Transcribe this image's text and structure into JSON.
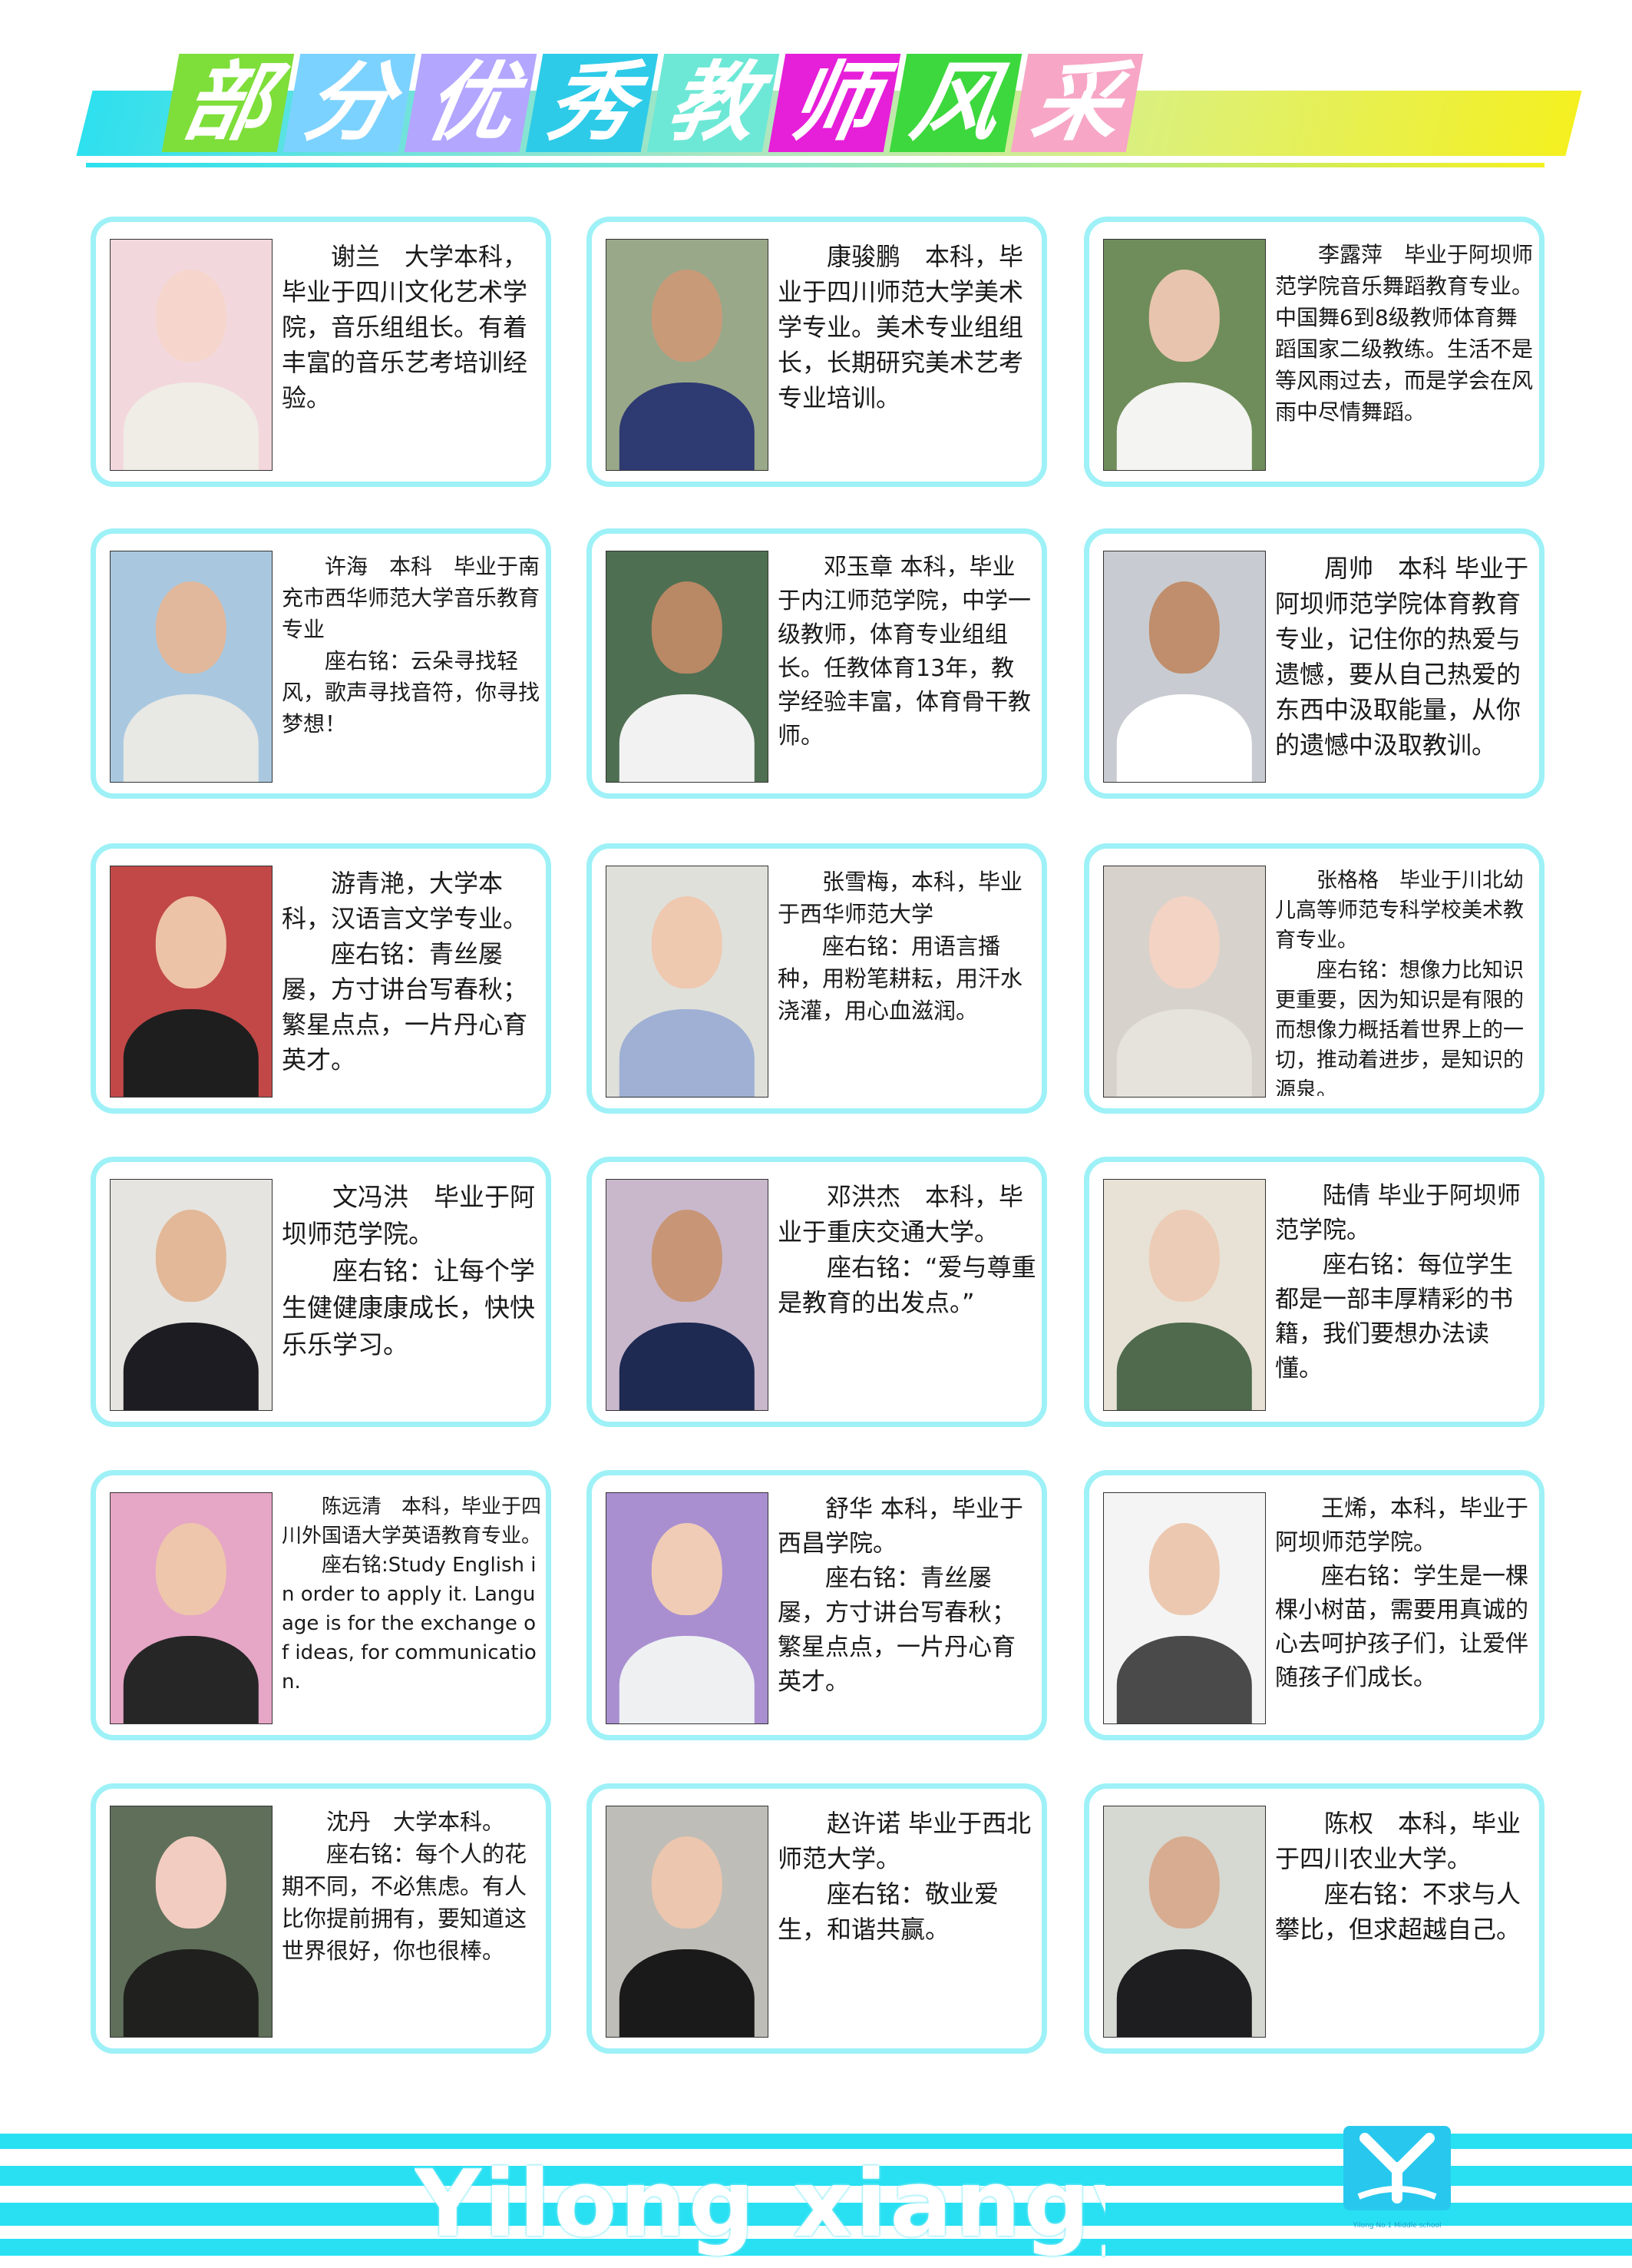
{
  "page": {
    "title_chars": [
      "部",
      "分",
      "优",
      "秀",
      "教",
      "师",
      "风",
      "采"
    ],
    "title_colors": [
      "#7ede3a",
      "#7cd2ff",
      "#b3a6ff",
      "#2ecbe8",
      "#6ee8d6",
      "#e61fd9",
      "#3dd83d",
      "#f7a6c6"
    ],
    "footer_text": "Yilong xiangyu",
    "logo_caption": "Yilong No.1 Middle school",
    "colors": {
      "accent": "#9ef1f7",
      "footer": "#28e0f2"
    }
  },
  "teachers": [
    {
      "text": "　　谢兰　大学本科，毕业于四川文化艺术学院，音乐组组长。有着丰富的音乐艺考培训经验。",
      "photo": {
        "bg": "#f2d8dc",
        "skin": "#f6d6cc",
        "cloth": "#f0ece6"
      }
    },
    {
      "text": "　　康骏鹏　本科，毕业于四川师范大学美术学专业。美术专业组组长，长期研究美术艺考专业培训。",
      "photo": {
        "bg": "#9aa88a",
        "skin": "#c89a78",
        "cloth": "#2e3a72"
      }
    },
    {
      "text": "　　李露萍　毕业于阿坝师范学院音乐舞蹈教育专业。中国舞6到8级教师体育舞蹈国家二级教练。生活不是等风雨过去，而是学会在风雨中尽情舞蹈。",
      "photo": {
        "bg": "#6f8d5a",
        "skin": "#e8c4ae",
        "cloth": "#f4f4f2"
      }
    },
    {
      "text": "　　许海　本科　毕业于南充市西华师范大学音乐教育专业\n　　座右铭：云朵寻找轻风，歌声寻找音符，你寻找梦想！",
      "photo": {
        "bg": "#a9c8e0",
        "skin": "#e2b89c",
        "cloth": "#e8e8e4"
      }
    },
    {
      "text": "　　邓玉章 本科，毕业于内江师范学院，中学一级教师，体育专业组组长。任教体育13年，教学经验丰富，体育骨干教师。",
      "photo": {
        "bg": "#4f6f52",
        "skin": "#b98865",
        "cloth": "#f2f2f2"
      }
    },
    {
      "text": "　　周帅　本科 毕业于阿坝师范学院体育教育专业，记住你的热爱与遗憾，要从自己热爱的东西中汲取能量，从你的遗憾中汲取教训。",
      "photo": {
        "bg": "#c8ccd2",
        "skin": "#c08e6c",
        "cloth": "#ffffff"
      }
    },
    {
      "text": "　　游青滟，大学本科，汉语言文学专业。\n　　座右铭：青丝屡屡，方寸讲台写春秋；繁星点点，一片丹心育英才。",
      "photo": {
        "bg": "#c24848",
        "skin": "#edc3a8",
        "cloth": "#1e1e1e"
      }
    },
    {
      "text": "　　张雪梅，本科，毕业于西华师范大学\n　　座右铭：用语言播种，用粉笔耕耘，用汗水浇灌，用心血滋润。",
      "photo": {
        "bg": "#dfe0da",
        "skin": "#efc8b0",
        "cloth": "#9fb0d4"
      }
    },
    {
      "text": "　　张格格　毕业于川北幼儿高等师范专科学校美术教育专业。\n　　座右铭：想像力比知识更重要，因为知识是有限的而想像力概括着世界上的一切，推动着进步，是知识的源泉。",
      "photo": {
        "bg": "#d8d2cc",
        "skin": "#f3d3c4",
        "cloth": "#e6e2dc"
      }
    },
    {
      "text": "　　文冯洪　毕业于阿坝师范学院。\n　　座右铭：让每个学生健健康康成长，快快乐乐学习。",
      "photo": {
        "bg": "#e6e4e0",
        "skin": "#e2b898",
        "cloth": "#1c1c22"
      }
    },
    {
      "text": "　　邓洪杰　本科，毕业于重庆交通大学。\n　　座右铭：“爱与尊重是教育的出发点。”",
      "photo": {
        "bg": "#c9b8cc",
        "skin": "#c89676",
        "cloth": "#1e2a52"
      }
    },
    {
      "text": "　　陆倩 毕业于阿坝师范学院。\n　　座右铭：每位学生都是一部丰厚精彩的书籍，我们要想办法读懂。",
      "photo": {
        "bg": "#e8e2d6",
        "skin": "#ecccb6",
        "cloth": "#4f6a4c"
      }
    },
    {
      "text": "　　陈远清　本科，毕业于四川外国语大学英语教育专业。\n　　座右铭:Study English in order to apply it. Language is for the exchange of ideas, for communication.",
      "photo": {
        "bg": "#e6a6c6",
        "skin": "#eec6ac",
        "cloth": "#262626"
      }
    },
    {
      "text": "　　舒华 本科，毕业于西昌学院。\n　　座右铭：青丝屡屡，方寸讲台写春秋；繁星点点，一片丹心育英才。",
      "photo": {
        "bg": "#a98fd0",
        "skin": "#f0ccb6",
        "cloth": "#eef0f2"
      }
    },
    {
      "text": "　　王烯，本科，毕业于阿坝师范学院。\n　　座右铭：学生是一棵棵小树苗，需要用真诚的心去呵护孩子们，让爱伴随孩子们成长。",
      "photo": {
        "bg": "#f4f4f4",
        "skin": "#ecc8b0",
        "cloth": "#4a4a4a"
      }
    },
    {
      "text": "　　沈丹　大学本科。\n　　座右铭：每个人的花期不同，不必焦虑。有人比你提前拥有，要知道这世界很好，你也很棒。",
      "photo": {
        "bg": "#5f6f5a",
        "skin": "#f2ccc0",
        "cloth": "#20201e"
      }
    },
    {
      "text": "　　赵许诺 毕业于西北师范大学。\n　　座右铭：敬业爱生，和谐共赢。",
      "photo": {
        "bg": "#bfbdb8",
        "skin": "#ecc6ae",
        "cloth": "#1a1a1a"
      }
    },
    {
      "text": "　　陈权　本科，毕业于四川农业大学。\n　　座右铭：不求与人攀比，但求超越自己。",
      "photo": {
        "bg": "#d6d8d2",
        "skin": "#d8ac90",
        "cloth": "#1e1e20"
      }
    }
  ]
}
